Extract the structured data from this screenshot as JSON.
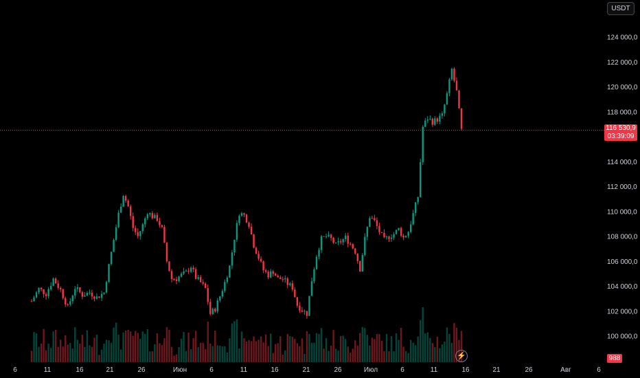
{
  "currency_label": "USDT",
  "chart_data": {
    "type": "candlestick",
    "price_axis": {
      "ticks": [
        "124 000,0",
        "122 000,0",
        "120 000,0",
        "118 000,0",
        "114 000,0",
        "112 000,0",
        "110 000,0",
        "108 000,0",
        "106 000,0",
        "104 000,0",
        "102 000,0",
        "100 000,0"
      ],
      "tick_values": [
        124000,
        122000,
        120000,
        118000,
        114000,
        112000,
        110000,
        108000,
        106000,
        104000,
        102000,
        100000
      ]
    },
    "time_axis": {
      "labels": [
        "6",
        "11",
        "16",
        "21",
        "26",
        "Июн",
        "6",
        "11",
        "16",
        "21",
        "26",
        "Июл",
        "6",
        "11",
        "16",
        "21",
        "26",
        "Авг",
        "6"
      ]
    },
    "current_price": {
      "label": "116 530,9",
      "countdown": "03:39:09",
      "value": 116530.9
    },
    "volume_label": "988",
    "series_close": [
      [
        0,
        102800
      ],
      [
        3,
        103800
      ],
      [
        6,
        103400
      ],
      [
        9,
        104600
      ],
      [
        12,
        103700
      ],
      [
        15,
        102300
      ],
      [
        18,
        103900
      ],
      [
        21,
        103300
      ],
      [
        24,
        103500
      ],
      [
        27,
        103100
      ],
      [
        30,
        103500
      ],
      [
        33,
        106700
      ],
      [
        36,
        109800
      ],
      [
        38,
        111400
      ],
      [
        40,
        110400
      ],
      [
        42,
        108700
      ],
      [
        44,
        108000
      ],
      [
        46,
        108900
      ],
      [
        48,
        110000
      ],
      [
        50,
        109600
      ],
      [
        52,
        109400
      ],
      [
        54,
        108600
      ],
      [
        56,
        106000
      ],
      [
        58,
        104600
      ],
      [
        60,
        104600
      ],
      [
        62,
        104900
      ],
      [
        64,
        105100
      ],
      [
        66,
        105600
      ],
      [
        68,
        104700
      ],
      [
        70,
        104300
      ],
      [
        72,
        103800
      ],
      [
        74,
        101800
      ],
      [
        76,
        102200
      ],
      [
        78,
        103200
      ],
      [
        80,
        104300
      ],
      [
        82,
        105600
      ],
      [
        84,
        107900
      ],
      [
        86,
        109900
      ],
      [
        88,
        109700
      ],
      [
        90,
        109000
      ],
      [
        92,
        107300
      ],
      [
        94,
        106300
      ],
      [
        96,
        105300
      ],
      [
        98,
        104900
      ],
      [
        100,
        105200
      ],
      [
        102,
        104600
      ],
      [
        104,
        104600
      ],
      [
        106,
        104200
      ],
      [
        108,
        103900
      ],
      [
        110,
        102500
      ],
      [
        112,
        102100
      ],
      [
        114,
        101800
      ],
      [
        116,
        104500
      ],
      [
        118,
        106500
      ],
      [
        120,
        107800
      ],
      [
        122,
        108000
      ],
      [
        124,
        107800
      ],
      [
        126,
        107300
      ],
      [
        128,
        107600
      ],
      [
        130,
        107900
      ],
      [
        132,
        107400
      ],
      [
        134,
        106800
      ],
      [
        136,
        105400
      ],
      [
        138,
        107800
      ],
      [
        140,
        109600
      ],
      [
        142,
        109200
      ],
      [
        144,
        108400
      ],
      [
        146,
        107700
      ],
      [
        148,
        108000
      ],
      [
        150,
        108200
      ],
      [
        152,
        108600
      ],
      [
        154,
        107900
      ],
      [
        156,
        108400
      ],
      [
        158,
        109800
      ],
      [
        160,
        111200
      ],
      [
        162,
        116800
      ],
      [
        164,
        117500
      ],
      [
        166,
        117200
      ],
      [
        168,
        117400
      ],
      [
        170,
        117700
      ],
      [
        172,
        119400
      ],
      [
        174,
        121400
      ],
      [
        176,
        119600
      ],
      [
        178,
        116500
      ]
    ]
  }
}
